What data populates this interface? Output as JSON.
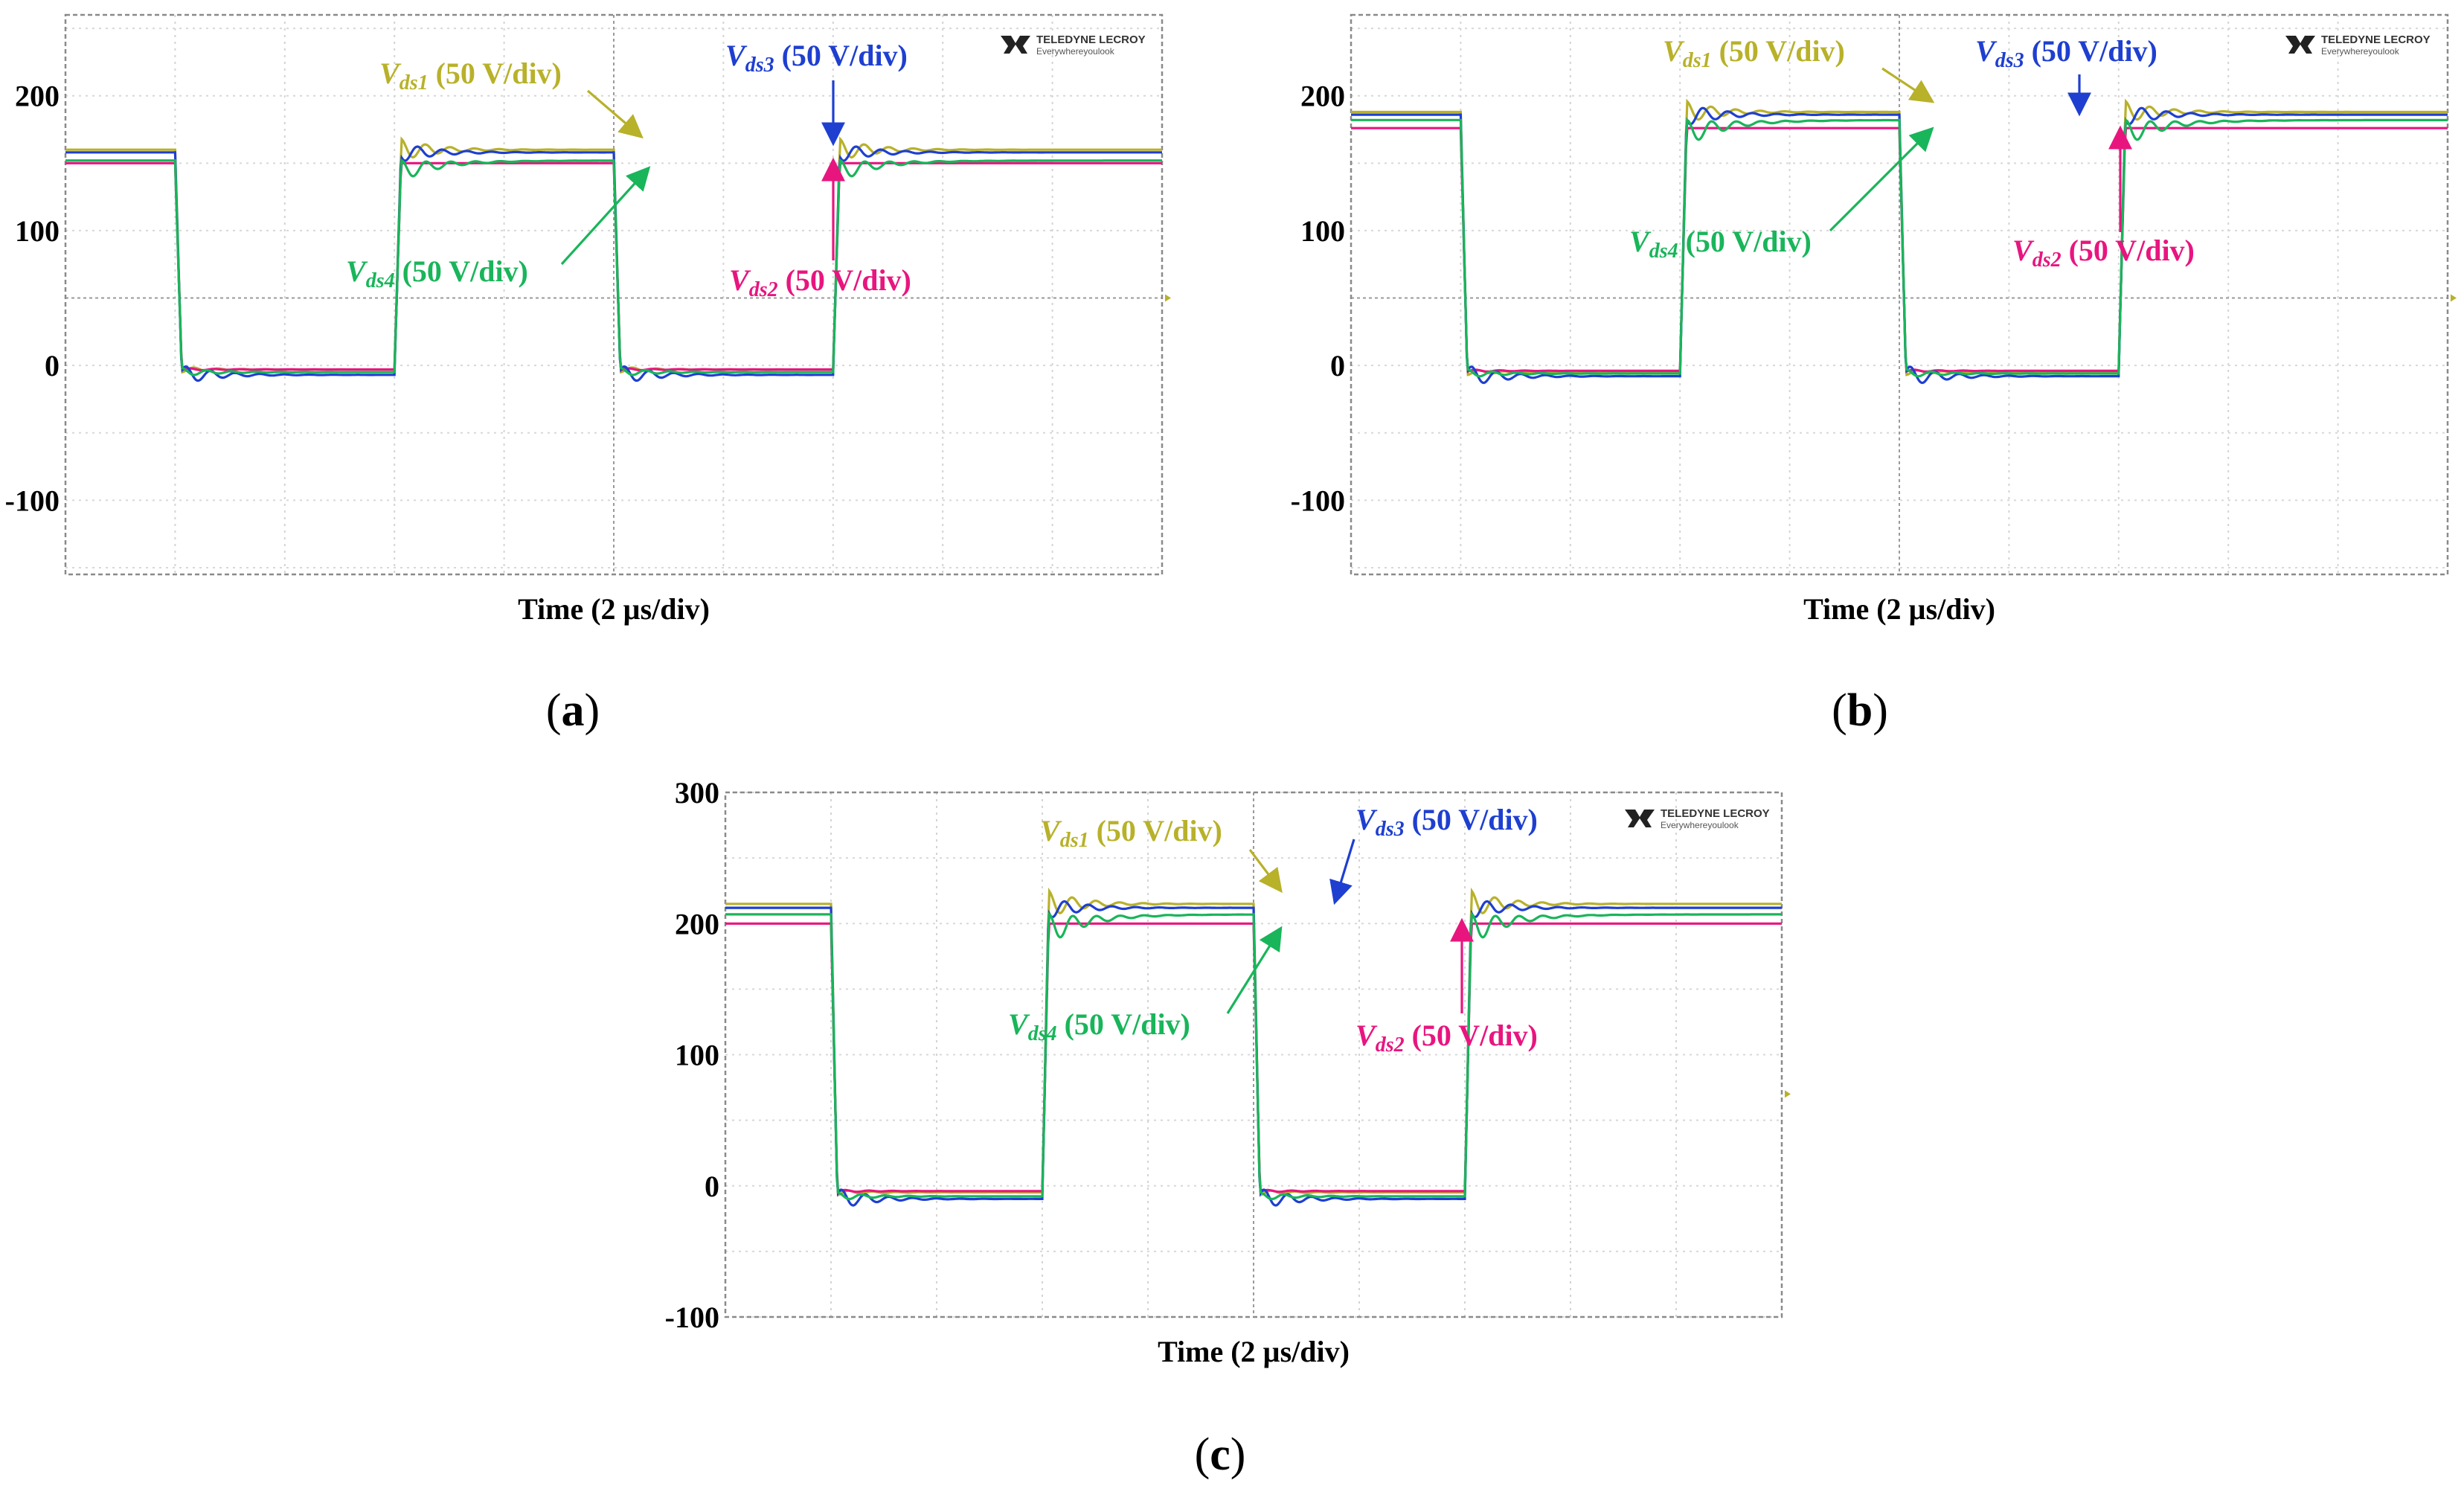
{
  "chart_data": [
    {
      "id": "a",
      "type": "line",
      "panel_label": "(a)",
      "xlabel": "Time (2 µs/div)",
      "ylim": [
        -155,
        260
      ],
      "yticks": [
        200,
        100,
        0,
        -100
      ],
      "xlim": [
        0,
        20
      ],
      "x_divisions": 10,
      "grid": true,
      "logo": {
        "line1": "TELEDYNE LECROY",
        "line2": "Everywhereyoulook"
      },
      "series": [
        {
          "name": "Vds1",
          "color": "#b8b12a",
          "high": 160,
          "low": -3,
          "overshoot": 8,
          "undershoot": -2
        },
        {
          "name": "Vds2",
          "color": "#e8157f",
          "high": 150,
          "low": -3,
          "overshoot": 0,
          "undershoot": -1
        },
        {
          "name": "Vds3",
          "color": "#1e3fd0",
          "high": 158,
          "low": -7,
          "overshoot": 7,
          "undershoot": -7
        },
        {
          "name": "Vds4",
          "color": "#19b55a",
          "high": 152,
          "low": -5,
          "overshoot": -8,
          "undershoot": -3
        }
      ],
      "annotations": [
        {
          "series": "Vds1",
          "main": "V",
          "sub": "ds1",
          "rest": " (50 V/div)",
          "color": "#b8b12a"
        },
        {
          "series": "Vds3",
          "main": "V",
          "sub": "ds3",
          "rest": " (50 V/div)",
          "color": "#1e3fd0"
        },
        {
          "series": "Vds4",
          "main": "V",
          "sub": "ds4",
          "rest": " (50 V/div)",
          "color": "#19b55a"
        },
        {
          "series": "Vds2",
          "main": "V",
          "sub": "ds2",
          "rest": " (50 V/div)",
          "color": "#e8157f"
        }
      ]
    },
    {
      "id": "b",
      "type": "line",
      "panel_label": "(b)",
      "xlabel": "Time (2 µs/div)",
      "ylim": [
        -155,
        260
      ],
      "yticks": [
        200,
        100,
        0,
        -100
      ],
      "xlim": [
        0,
        20
      ],
      "x_divisions": 10,
      "grid": true,
      "logo": {
        "line1": "TELEDYNE LECROY",
        "line2": "Everywhereyoulook"
      },
      "series": [
        {
          "name": "Vds1",
          "color": "#b8b12a",
          "high": 188,
          "low": -5,
          "overshoot": 8,
          "undershoot": -2
        },
        {
          "name": "Vds2",
          "color": "#e8157f",
          "high": 176,
          "low": -4,
          "overshoot": 0,
          "undershoot": -1
        },
        {
          "name": "Vds3",
          "color": "#1e3fd0",
          "high": 186,
          "low": -8,
          "overshoot": 8,
          "undershoot": -8
        },
        {
          "name": "Vds4",
          "color": "#19b55a",
          "high": 182,
          "low": -6,
          "overshoot": -10,
          "undershoot": -3
        }
      ],
      "annotations": [
        {
          "series": "Vds1",
          "main": "V",
          "sub": "ds1",
          "rest": " (50 V/div)",
          "color": "#b8b12a"
        },
        {
          "series": "Vds3",
          "main": "V",
          "sub": "ds3",
          "rest": " (50 V/div)",
          "color": "#1e3fd0"
        },
        {
          "series": "Vds4",
          "main": "V",
          "sub": "ds4",
          "rest": " (50 V/div)",
          "color": "#19b55a"
        },
        {
          "series": "Vds2",
          "main": "V",
          "sub": "ds2",
          "rest": " (50 V/div)",
          "color": "#e8157f"
        }
      ]
    },
    {
      "id": "c",
      "type": "line",
      "panel_label": "(c)",
      "xlabel": "Time (2 µs/div)",
      "ylim": [
        -100,
        300
      ],
      "yticks": [
        300,
        200,
        100,
        0,
        -100
      ],
      "xlim": [
        0,
        20
      ],
      "x_divisions": 10,
      "grid": true,
      "logo": {
        "line1": "TELEDYNE LECROY",
        "line2": "Everywhereyoulook"
      },
      "series": [
        {
          "name": "Vds1",
          "color": "#b8b12a",
          "high": 215,
          "low": -5,
          "overshoot": 10,
          "undershoot": -2
        },
        {
          "name": "Vds2",
          "color": "#e8157f",
          "high": 200,
          "low": -4,
          "overshoot": 0,
          "undershoot": -1
        },
        {
          "name": "Vds3",
          "color": "#1e3fd0",
          "high": 212,
          "low": -10,
          "overshoot": 8,
          "undershoot": -8
        },
        {
          "name": "Vds4",
          "color": "#19b55a",
          "high": 207,
          "low": -8,
          "overshoot": -12,
          "undershoot": -3
        }
      ],
      "annotations": [
        {
          "series": "Vds1",
          "main": "V",
          "sub": "ds1",
          "rest": " (50 V/div)",
          "color": "#b8b12a"
        },
        {
          "series": "Vds3",
          "main": "V",
          "sub": "ds3",
          "rest": " (50 V/div)",
          "color": "#1e3fd0"
        },
        {
          "series": "Vds4",
          "main": "V",
          "sub": "ds4",
          "rest": " (50 V/div)",
          "color": "#19b55a"
        },
        {
          "series": "Vds2",
          "main": "V",
          "sub": "ds2",
          "rest": " (50 V/div)",
          "color": "#e8157f"
        }
      ]
    }
  ]
}
